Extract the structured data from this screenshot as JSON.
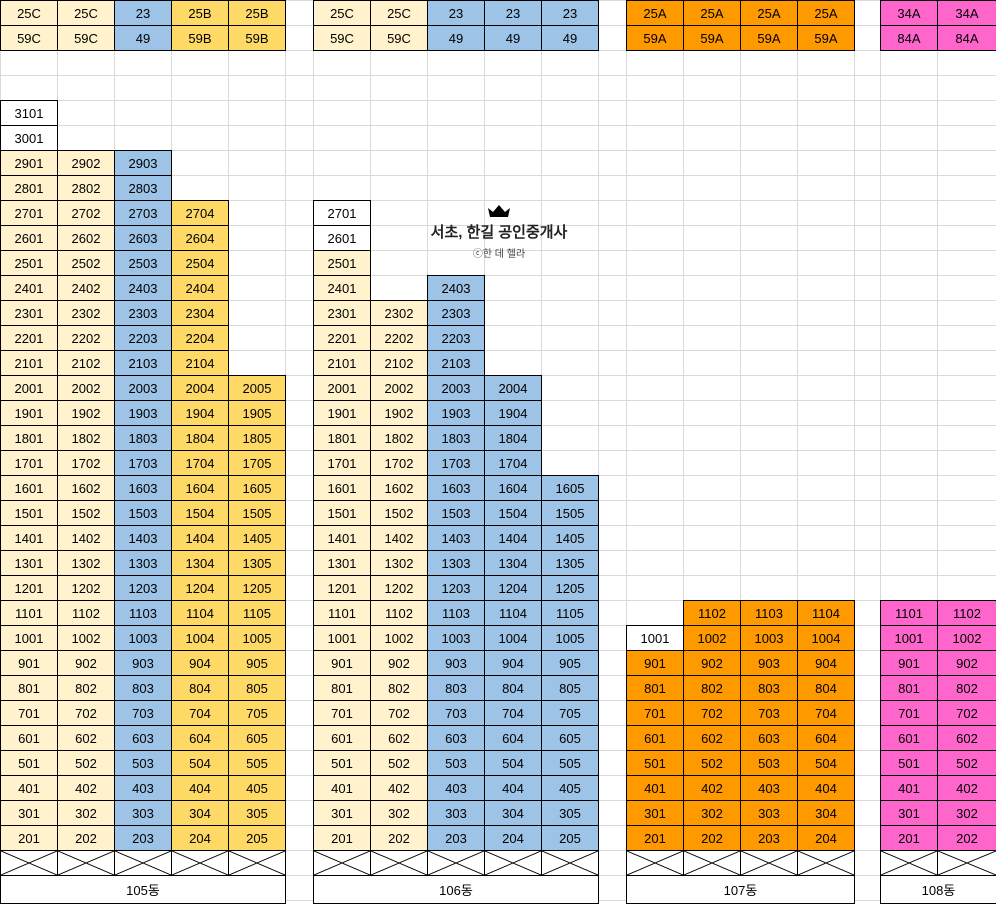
{
  "colors": {
    "light_yellow": "#fff2cc",
    "yellow": "#ffd966",
    "blue": "#9dc3e6",
    "orange": "#ff9900",
    "pink": "#ff66cc",
    "white": "#ffffff",
    "grid_line": "#d9d9d9"
  },
  "watermark": {
    "title": "서초, 한길 공인중개사",
    "credit": "ⓒ한 데 헬라",
    "icon": "crown-icon"
  },
  "buildings": [
    {
      "name": "105동",
      "columns": [
        {
          "color": "light_yellow",
          "type": "25C",
          "area": "59C",
          "top_floor": 31,
          "white_floors": [
            31,
            30
          ]
        },
        {
          "color": "light_yellow",
          "type": "25C",
          "area": "59C",
          "top_floor": 29,
          "white_floors": []
        },
        {
          "color": "blue",
          "type": "23",
          "area": "49",
          "top_floor": 29,
          "white_floors": []
        },
        {
          "color": "yellow",
          "type": "25B",
          "area": "59B",
          "top_floor": 27,
          "white_floors": []
        },
        {
          "color": "yellow",
          "type": "25B",
          "area": "59B",
          "top_floor": 20,
          "white_floors": []
        }
      ]
    },
    {
      "name": "106동",
      "columns": [
        {
          "color": "light_yellow",
          "type": "25C",
          "area": "59C",
          "top_floor": 27,
          "white_floors": [
            27,
            26
          ]
        },
        {
          "color": "light_yellow",
          "type": "25C",
          "area": "59C",
          "top_floor": 23,
          "white_floors": []
        },
        {
          "color": "blue",
          "type": "23",
          "area": "49",
          "top_floor": 24,
          "white_floors": []
        },
        {
          "color": "blue",
          "type": "23",
          "area": "49",
          "top_floor": 20,
          "white_floors": []
        },
        {
          "color": "blue",
          "type": "23",
          "area": "49",
          "top_floor": 16,
          "white_floors": []
        }
      ]
    },
    {
      "name": "107동",
      "columns": [
        {
          "color": "orange",
          "type": "25A",
          "area": "59A",
          "top_floor": 10,
          "white_floors": [
            10
          ]
        },
        {
          "color": "orange",
          "type": "25A",
          "area": "59A",
          "top_floor": 11,
          "white_floors": []
        },
        {
          "color": "orange",
          "type": "25A",
          "area": "59A",
          "top_floor": 11,
          "white_floors": []
        },
        {
          "color": "orange",
          "type": "25A",
          "area": "59A",
          "top_floor": 11,
          "white_floors": []
        }
      ]
    },
    {
      "name": "108동",
      "columns": [
        {
          "color": "pink",
          "type": "34A",
          "area": "84A",
          "top_floor": 11,
          "white_floors": []
        },
        {
          "color": "pink",
          "type": "34A",
          "area": "84A",
          "top_floor": 11,
          "white_floors": []
        }
      ]
    }
  ]
}
